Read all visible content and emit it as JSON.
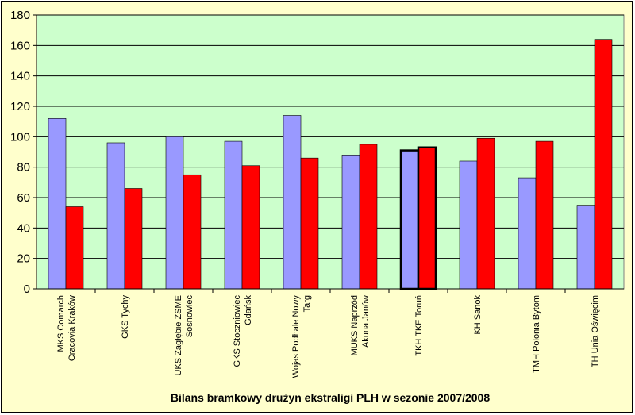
{
  "chart_data": {
    "type": "bar",
    "title": "Bilans bramkowy drużyn ekstraligi PLH w sezonie 2007/2008",
    "xlabel": "",
    "ylabel": "",
    "ylim": [
      0,
      180
    ],
    "yticks": [
      0,
      20,
      40,
      60,
      80,
      100,
      120,
      140,
      160,
      180
    ],
    "grid": true,
    "legend": "none",
    "colors": {
      "series1": "#9999ff",
      "series2": "#ff0000",
      "plot_bg": "#ccffcc",
      "chart_bg": "#ffffcc"
    },
    "categories": [
      [
        "MKS Comarch",
        "Cracovia Kraków"
      ],
      [
        "GKS Tychy"
      ],
      [
        "UKS Zagłębie ZSME",
        "Sosnowiec"
      ],
      [
        "GKS Stoczniowiec",
        "Gdańsk"
      ],
      [
        "Wojas Podhale Nowy",
        "Targ"
      ],
      [
        "MUKS Naprzód",
        "Akuna Janów"
      ],
      [
        "TKH TKE Toruń"
      ],
      [
        "KH Sanok"
      ],
      [
        "TMH Polonia Bytom"
      ],
      [
        "TH Unia Oświęcim"
      ]
    ],
    "series": [
      {
        "values": [
          112,
          96,
          100,
          97,
          114,
          88,
          91,
          84,
          73,
          55
        ]
      },
      {
        "values": [
          54,
          66,
          75,
          81,
          86,
          95,
          93,
          99,
          97,
          164
        ]
      }
    ],
    "highlighted_category_index": 6
  }
}
